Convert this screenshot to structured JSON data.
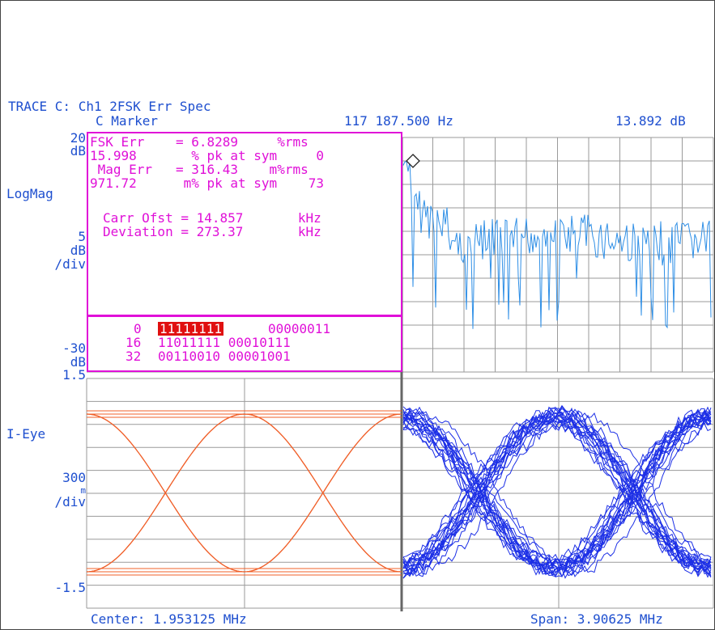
{
  "header": {
    "trace_title": "TRACE C: Ch1 2FSK Err Spec",
    "marker_label": "C Marker",
    "marker_freq": "117 187.500 Hz",
    "marker_value": "13.892 dB"
  },
  "spectrum_axis": {
    "top_value": "20",
    "top_unit": "dB",
    "scale_name": "LogMag",
    "div_value": "5",
    "div_unit": "dB",
    "div_label": "/div",
    "bottom_value": "-30",
    "bottom_unit": "dB"
  },
  "eye_axis": {
    "top_value": "1.5",
    "name": "I-Eye",
    "div_value": "300",
    "div_unit": "m",
    "div_label": "/div",
    "bottom_value": "-1.5"
  },
  "stats": {
    "line1": "FSK Err    = 6.8289     %rms",
    "line2": "15.998       % pk at sym     0",
    "line3": " Mag Err   = 316.43    m%rms",
    "line4": "971.72      m% pk at sym    73",
    "line5": "Carr Ofst = 14.857       kHz",
    "line6": "Deviation = 273.37       kHz"
  },
  "symbols": {
    "row0_index": "0",
    "row0_highlight": "11111111",
    "row0_bits": "00000011",
    "row1_index": "16",
    "row1_bits": "11011111 00010111",
    "row2_index": "32",
    "row2_bits": "00110010 00001001"
  },
  "footer": {
    "center": "Center: 1.953125 MHz",
    "span": "Span: 3.90625 MHz"
  },
  "colors": {
    "text_blue": "#1e4fcf",
    "magenta": "#e010d8",
    "spectrum_trace": "#2f8fe6",
    "eye_reference": "#f0602a",
    "eye_measured": "#1c2fe6",
    "grid": "#9a9a9a"
  }
}
